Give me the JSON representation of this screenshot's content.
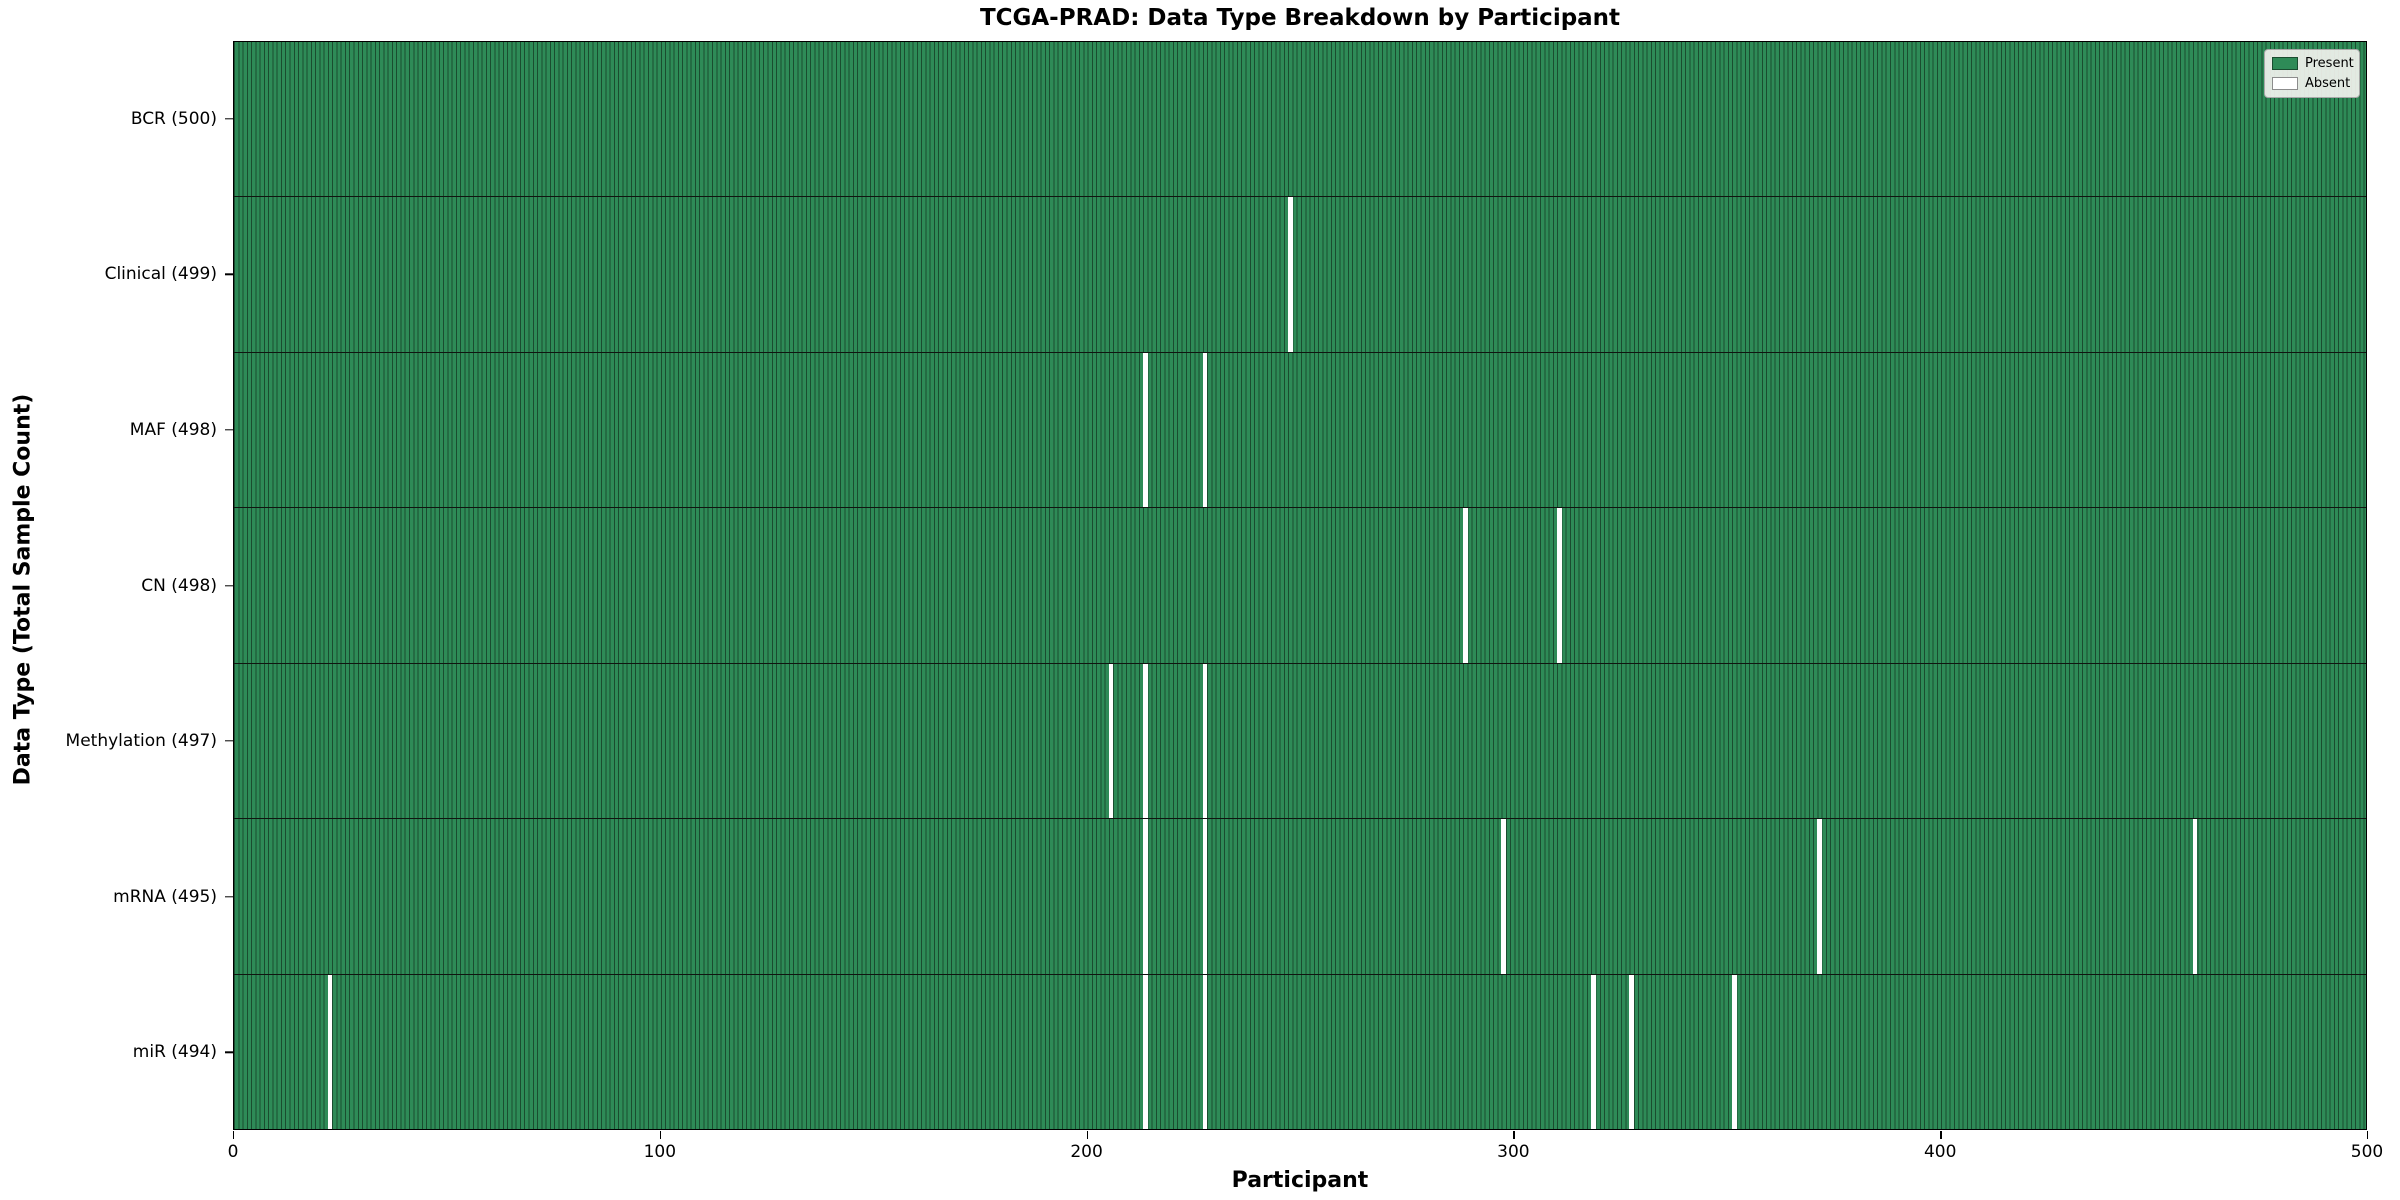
{
  "title": "TCGA-PRAD: Data Type Breakdown by Participant",
  "axes": {
    "xlabel": "Participant",
    "ylabel": "Data Type (Total Sample Count)",
    "x_ticks": [
      0,
      100,
      200,
      300,
      400,
      500
    ]
  },
  "legend": {
    "present_label": "Present",
    "absent_label": "Absent"
  },
  "colors": {
    "present": "#2e8b57",
    "absent": "#ffffff",
    "cell_edge": "rgba(10,25,15,0.55)"
  },
  "chart_data": {
    "type": "heatmap",
    "title": "TCGA-PRAD: Data Type Breakdown by Participant",
    "xlabel": "Participant",
    "ylabel": "Data Type (Total Sample Count)",
    "x_range": [
      0,
      500
    ],
    "n_participants": 500,
    "grid": false,
    "legend_position": "upper right",
    "legend_entries": [
      "Present",
      "Absent"
    ],
    "rows": [
      {
        "label": "BCR (500)",
        "data_type": "BCR",
        "total": 500,
        "absent_participants": []
      },
      {
        "label": "Clinical (499)",
        "data_type": "Clinical",
        "total": 499,
        "absent_participants": [
          247
        ]
      },
      {
        "label": "MAF (498)",
        "data_type": "MAF",
        "total": 498,
        "absent_participants": [
          213,
          227
        ]
      },
      {
        "label": "CN (498)",
        "data_type": "CN",
        "total": 498,
        "absent_participants": [
          288,
          310
        ]
      },
      {
        "label": "Methylation (497)",
        "data_type": "Methylation",
        "total": 497,
        "absent_participants": [
          205,
          213,
          227
        ]
      },
      {
        "label": "mRNA (495)",
        "data_type": "mRNA",
        "total": 495,
        "absent_participants": [
          213,
          227,
          297,
          371,
          459
        ]
      },
      {
        "label": "miR (494)",
        "data_type": "miR",
        "total": 494,
        "absent_participants": [
          22,
          213,
          227,
          318,
          327,
          351
        ]
      }
    ]
  }
}
